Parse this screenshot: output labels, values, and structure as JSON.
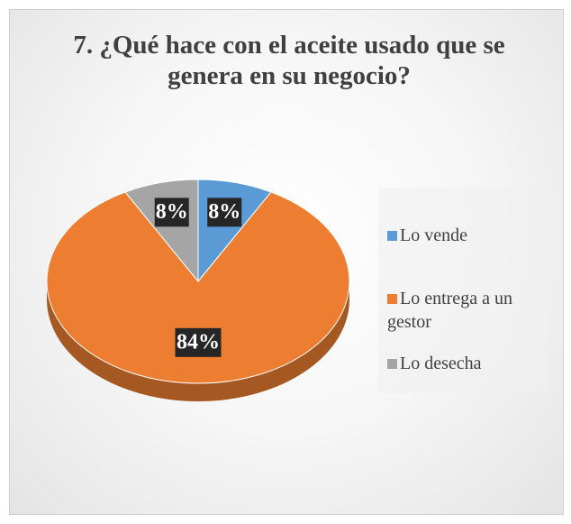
{
  "chart_data": {
    "type": "pie",
    "title": "7. ¿Qué hace con el aceite usado que se genera en su negocio?",
    "categories": [
      "Lo vende",
      "Lo entrega a un gestor",
      "Lo desecha"
    ],
    "values": [
      8,
      84,
      8
    ],
    "value_labels": [
      "8%",
      "84%",
      "8%"
    ],
    "colors": [
      "#5b9bd5",
      "#ed7d31",
      "#a5a5a5"
    ],
    "legend": "right"
  }
}
